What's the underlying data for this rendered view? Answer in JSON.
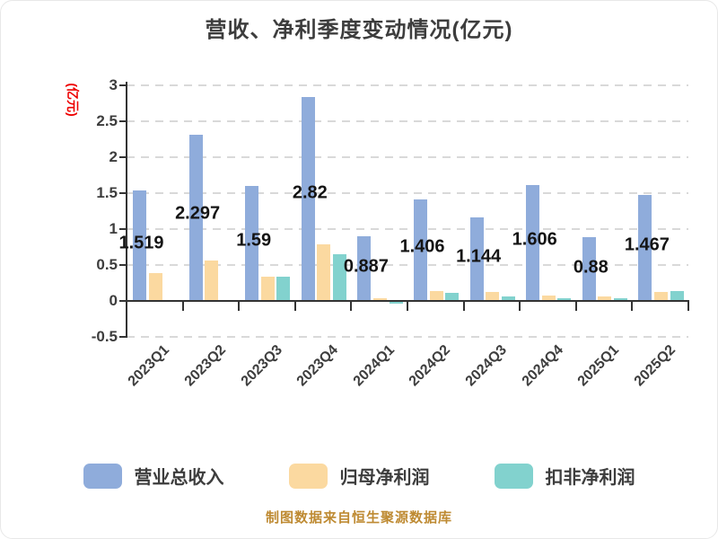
{
  "title": "营收、净利季度变动情况(亿元)",
  "y_axis_unit": "(亿元)",
  "footer_note": "制图数据来自恒生聚源数据库",
  "colors": {
    "revenue": "#8FACDB",
    "net_profit": "#FBD9A0",
    "deducted_net_profit": "#82D2CE",
    "axis": "#333333",
    "grid": "#D9D9D9",
    "title_text": "#3D3D3D",
    "value_label": "#141414",
    "unit_label_red": "#EE0000",
    "footer_gold": "#BE8A32"
  },
  "chart_data": {
    "type": "bar",
    "title": "营收、净利季度变动情况(亿元)",
    "ylabel": "(亿元)",
    "categories": [
      "2023Q1",
      "2023Q2",
      "2023Q3",
      "2023Q4",
      "2024Q1",
      "2024Q2",
      "2024Q3",
      "2024Q4",
      "2025Q1",
      "2025Q2"
    ],
    "series": [
      {
        "name": "营业总收入",
        "color_key": "revenue",
        "values": [
          1.519,
          2.297,
          1.59,
          2.82,
          0.887,
          1.406,
          1.144,
          1.606,
          0.88,
          1.467
        ],
        "labels": [
          "1.519",
          "2.297",
          "1.59",
          "2.82",
          "0.887",
          "1.406",
          "1.144",
          "1.606",
          "0.88",
          "1.467"
        ]
      },
      {
        "name": "归母净利润",
        "color_key": "net_profit",
        "values": [
          0.37,
          0.55,
          0.32,
          0.77,
          0.02,
          0.12,
          0.11,
          0.06,
          0.05,
          0.11
        ]
      },
      {
        "name": "扣非净利润",
        "color_key": "deducted_net_profit",
        "values": [
          0,
          0,
          0.32,
          0.64,
          -0.03,
          0.1,
          0.05,
          0.02,
          0.02,
          0.13
        ]
      }
    ],
    "yticks": [
      3,
      2.5,
      2,
      1.5,
      1,
      0.5,
      0,
      -0.5
    ],
    "ylim": [
      -0.5,
      3
    ],
    "grid": "horizontal-dashed",
    "legend_position": "bottom"
  }
}
